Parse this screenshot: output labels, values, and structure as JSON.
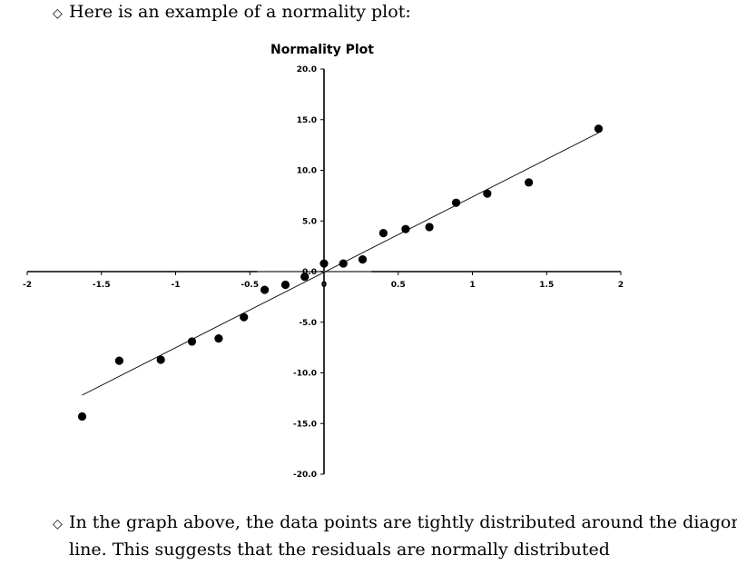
{
  "text": {
    "intro": "Here is an example of a normality plot:",
    "conclusion_line1": "In the graph above, the data points are tightly distributed around the diagonal",
    "conclusion_line2": "line. This suggests that the residuals are normally distributed",
    "bullet_symbol": "◇"
  },
  "chart_data": {
    "type": "scatter",
    "title": "Normality Plot",
    "xlabel": "",
    "ylabel": "",
    "xlim": [
      -2,
      2
    ],
    "ylim": [
      -20,
      20
    ],
    "x_ticks": [
      "-2",
      "-1.5",
      "-1",
      "-0.5",
      "0",
      "0.5",
      "1",
      "1.5",
      "2"
    ],
    "x_tick_values": [
      -2,
      -1.5,
      -1,
      -0.5,
      0,
      0.5,
      1,
      1.5,
      2
    ],
    "y_ticks": [
      "20.0",
      "15.0",
      "10.0",
      "5.0",
      "0.0",
      "-5.0",
      "-10.0",
      "-15.0",
      "-20.0"
    ],
    "y_tick_values": [
      20,
      15,
      10,
      5,
      0,
      -5,
      -10,
      -15,
      -20
    ],
    "points": [
      {
        "x": -1.63,
        "y": -14.3
      },
      {
        "x": -1.38,
        "y": -8.8
      },
      {
        "x": -1.1,
        "y": -8.7
      },
      {
        "x": -0.89,
        "y": -6.9
      },
      {
        "x": -0.71,
        "y": -6.6
      },
      {
        "x": -0.54,
        "y": -4.5
      },
      {
        "x": -0.4,
        "y": -1.8
      },
      {
        "x": -0.26,
        "y": -1.3
      },
      {
        "x": -0.13,
        "y": -0.5
      },
      {
        "x": 0.0,
        "y": 0.8
      },
      {
        "x": 0.13,
        "y": 0.8
      },
      {
        "x": 0.26,
        "y": 1.2
      },
      {
        "x": 0.4,
        "y": 3.8
      },
      {
        "x": 0.55,
        "y": 4.2
      },
      {
        "x": 0.71,
        "y": 4.4
      },
      {
        "x": 0.89,
        "y": 6.8
      },
      {
        "x": 1.1,
        "y": 7.7
      },
      {
        "x": 1.38,
        "y": 8.8
      },
      {
        "x": 1.85,
        "y": 14.1
      }
    ],
    "trendline": {
      "x1": -1.63,
      "y1": -12.2,
      "x2": 1.85,
      "y2": 13.7
    },
    "grid": false,
    "legend": "none"
  }
}
